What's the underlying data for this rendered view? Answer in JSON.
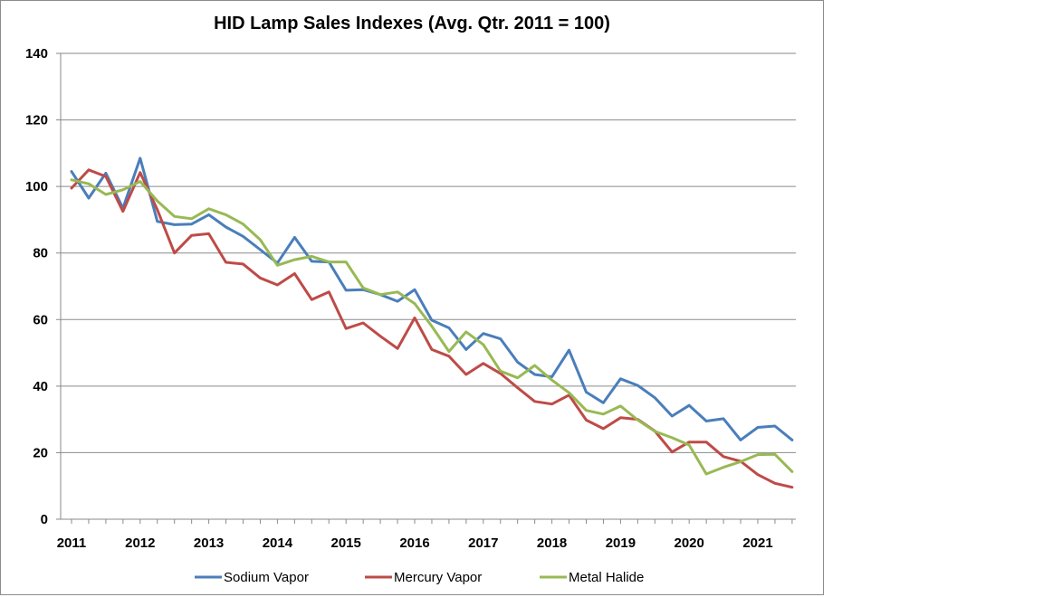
{
  "chart_data": {
    "type": "line",
    "title": "HID Lamp Sales Indexes (Avg. Qtr. 2011 = 100)",
    "xlabel": "",
    "ylabel": "",
    "ylim": [
      0,
      140
    ],
    "yticks": [
      0,
      20,
      40,
      60,
      80,
      100,
      120,
      140
    ],
    "xticks": [
      "2011",
      "2012",
      "2013",
      "2014",
      "2015",
      "2016",
      "2017",
      "2018",
      "2019",
      "2020",
      "2021"
    ],
    "x_unit": "quarter",
    "grid": true,
    "legend_position": "bottom",
    "series": [
      {
        "name": "Sodium Vapor",
        "color": "#4a7ebb",
        "values": [
          104.5,
          96.5,
          104,
          93.5,
          108.5,
          89.5,
          88.5,
          88.7,
          91.5,
          87.8,
          85,
          81,
          77,
          84.7,
          77.5,
          77.3,
          68.8,
          69,
          67.5,
          65.5,
          69,
          59.8,
          57.5,
          51,
          55.8,
          54.2,
          47.2,
          43.5,
          42.8,
          50.8,
          38.2,
          35,
          42.2,
          40.2,
          36.5,
          31,
          34.2,
          29.5,
          30.2,
          23.8,
          27.6,
          28,
          23.8
        ]
      },
      {
        "name": "Mercury Vapor",
        "color": "#be4b48",
        "values": [
          99.5,
          105,
          103,
          92.5,
          104.2,
          93,
          80,
          85.3,
          85.8,
          77.2,
          76.7,
          72.5,
          70.4,
          73.8,
          66,
          68.3,
          57.3,
          59,
          55,
          51.3,
          60.5,
          51,
          49,
          43.5,
          46.8,
          43.8,
          39.5,
          35.4,
          34.6,
          37.3,
          29.8,
          27.2,
          30.5,
          30,
          26.5,
          20.2,
          23.2,
          23.2,
          18.8,
          17.4,
          13.4,
          10.8,
          9.6
        ]
      },
      {
        "name": "Metal Halide",
        "color": "#98b954",
        "values": [
          102,
          100.8,
          97.6,
          99,
          101.5,
          95.6,
          91,
          90.3,
          93.3,
          91.5,
          88.7,
          84,
          76.3,
          78,
          79,
          77.3,
          77.3,
          69.5,
          67.5,
          68.3,
          64.8,
          58,
          50.4,
          56.3,
          52.5,
          44.5,
          42.5,
          46.2,
          41.8,
          38,
          32.7,
          31.6,
          34,
          29.8,
          26.4,
          24.5,
          22.3,
          13.6,
          15.6,
          17.3,
          19.4,
          19.5,
          14.3
        ]
      }
    ]
  }
}
